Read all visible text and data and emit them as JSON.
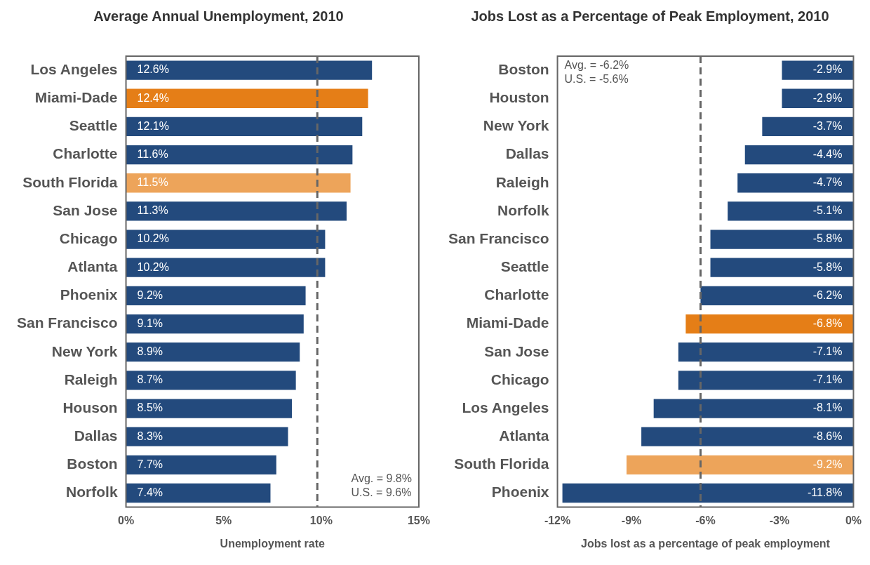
{
  "chart_data": [
    {
      "type": "bar",
      "orientation": "horizontal",
      "title": "Average Annual Unemployment, 2010",
      "xlabel": "Unemployment rate",
      "categories": [
        "Los Angeles",
        "Miami-Dade",
        "Seattle",
        "Charlotte",
        "South Florida",
        "San Jose",
        "Chicago",
        "Atlanta",
        "Phoenix",
        "San Francisco",
        "New York",
        "Raleigh",
        "Houson",
        "Dallas",
        "Boston",
        "Norfolk"
      ],
      "values": [
        12.6,
        12.4,
        12.1,
        11.6,
        11.5,
        11.3,
        10.2,
        10.2,
        9.2,
        9.1,
        8.9,
        8.7,
        8.5,
        8.3,
        7.7,
        7.4
      ],
      "value_labels": [
        "12.6%",
        "12.4%",
        "12.1%",
        "11.6%",
        "11.5%",
        "11.3%",
        "10.2%",
        "10.2%",
        "9.2%",
        "9.1%",
        "8.9%",
        "8.7%",
        "8.5%",
        "8.3%",
        "7.7%",
        "7.4%"
      ],
      "colors": [
        "#234a7d",
        "#e57e17",
        "#234a7d",
        "#234a7d",
        "#eda45a",
        "#234a7d",
        "#234a7d",
        "#234a7d",
        "#234a7d",
        "#234a7d",
        "#234a7d",
        "#234a7d",
        "#234a7d",
        "#234a7d",
        "#234a7d",
        "#234a7d"
      ],
      "xlim": [
        0,
        15
      ],
      "xticks": [
        {
          "value": 0,
          "label": "0%"
        },
        {
          "value": 5,
          "label": "5%"
        },
        {
          "value": 10,
          "label": "10%"
        },
        {
          "value": 15,
          "label": "15%"
        }
      ],
      "ref_lines": [
        {
          "axis": "x",
          "value": 9.8,
          "color": "#666666",
          "line_style": "dashed"
        }
      ],
      "annotations": [
        "Avg. = 9.8%",
        "U.S. = 9.6%"
      ]
    },
    {
      "type": "bar",
      "orientation": "horizontal",
      "title": "Jobs Lost as a Percentage of Peak Employment, 2010",
      "xlabel": "Jobs lost as a percentage of peak employment",
      "categories": [
        "Boston",
        "Houston",
        "New York",
        "Dallas",
        "Raleigh",
        "Norfolk",
        "San Francisco",
        "Seattle",
        "Charlotte",
        "Miami-Dade",
        "San Jose",
        "Chicago",
        "Los Angeles",
        "Atlanta",
        "South Florida",
        "Phoenix"
      ],
      "values": [
        -2.9,
        -2.9,
        -3.7,
        -4.4,
        -4.7,
        -5.1,
        -5.8,
        -5.8,
        -6.2,
        -6.8,
        -7.1,
        -7.1,
        -8.1,
        -8.6,
        -9.2,
        -11.8
      ],
      "value_labels": [
        "-2.9%",
        "-2.9%",
        "-3.7%",
        "-4.4%",
        "-4.7%",
        "-5.1%",
        "-5.8%",
        "-5.8%",
        "-6.2%",
        "-6.8%",
        "-7.1%",
        "-7.1%",
        "-8.1%",
        "-8.6%",
        "-9.2%",
        "-11.8%"
      ],
      "colors": [
        "#234a7d",
        "#234a7d",
        "#234a7d",
        "#234a7d",
        "#234a7d",
        "#234a7d",
        "#234a7d",
        "#234a7d",
        "#234a7d",
        "#e57e17",
        "#234a7d",
        "#234a7d",
        "#234a7d",
        "#234a7d",
        "#eda45a",
        "#234a7d"
      ],
      "xlim": [
        -12,
        0
      ],
      "xticks": [
        {
          "value": -12,
          "label": "-12%"
        },
        {
          "value": -9,
          "label": "-9%"
        },
        {
          "value": -6,
          "label": "-6%"
        },
        {
          "value": -3,
          "label": "-3%"
        },
        {
          "value": 0,
          "label": "0%"
        }
      ],
      "ref_lines": [
        {
          "axis": "x",
          "value": -6.2,
          "color": "#666666",
          "line_style": "dashed"
        }
      ],
      "annotations": [
        "Avg. = -6.2%",
        "U.S. = -5.6%"
      ]
    }
  ]
}
